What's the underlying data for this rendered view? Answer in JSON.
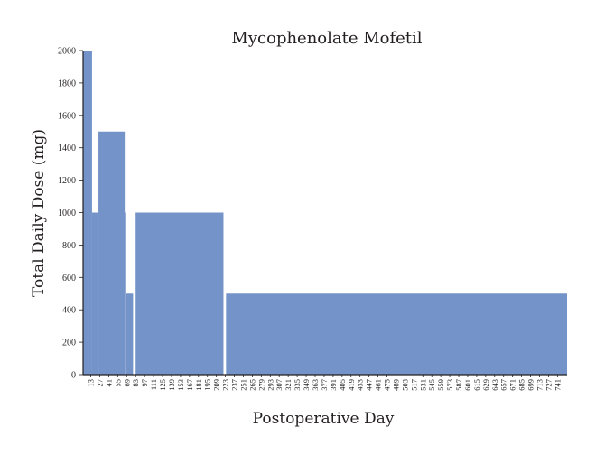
{
  "chart_data": {
    "type": "area",
    "title": "Mycophenolate Mofetil",
    "xlabel": "Postoperative Day",
    "ylabel": "Total Daily Dose (mg)",
    "ylim": [
      0,
      2000
    ],
    "yticks": [
      0,
      200,
      400,
      600,
      800,
      1000,
      1200,
      1400,
      1600,
      1800,
      2000
    ],
    "xlim": [
      1,
      756
    ],
    "xticks": [
      13,
      27,
      41,
      55,
      69,
      83,
      97,
      111,
      125,
      139,
      153,
      167,
      181,
      195,
      209,
      223,
      237,
      251,
      265,
      279,
      293,
      307,
      321,
      335,
      349,
      363,
      377,
      391,
      405,
      419,
      433,
      447,
      461,
      475,
      489,
      503,
      517,
      531,
      545,
      559,
      573,
      587,
      601,
      615,
      629,
      643,
      657,
      671,
      685,
      699,
      713,
      727,
      741
    ],
    "grid": false,
    "legend": "none",
    "color": "#7493c8",
    "series": [
      {
        "segments": [
          {
            "start": 1,
            "end": 15,
            "dose": 2000
          },
          {
            "start": 15,
            "end": 25,
            "dose": 1000
          },
          {
            "start": 25,
            "end": 66,
            "dose": 1500
          },
          {
            "start": 66,
            "end": 67,
            "dose": 1000
          },
          {
            "start": 67,
            "end": 79,
            "dose": 500
          },
          {
            "start": 83,
            "end": 220,
            "dose": 1000
          },
          {
            "start": 224,
            "end": 756,
            "dose": 500
          }
        ]
      }
    ]
  }
}
